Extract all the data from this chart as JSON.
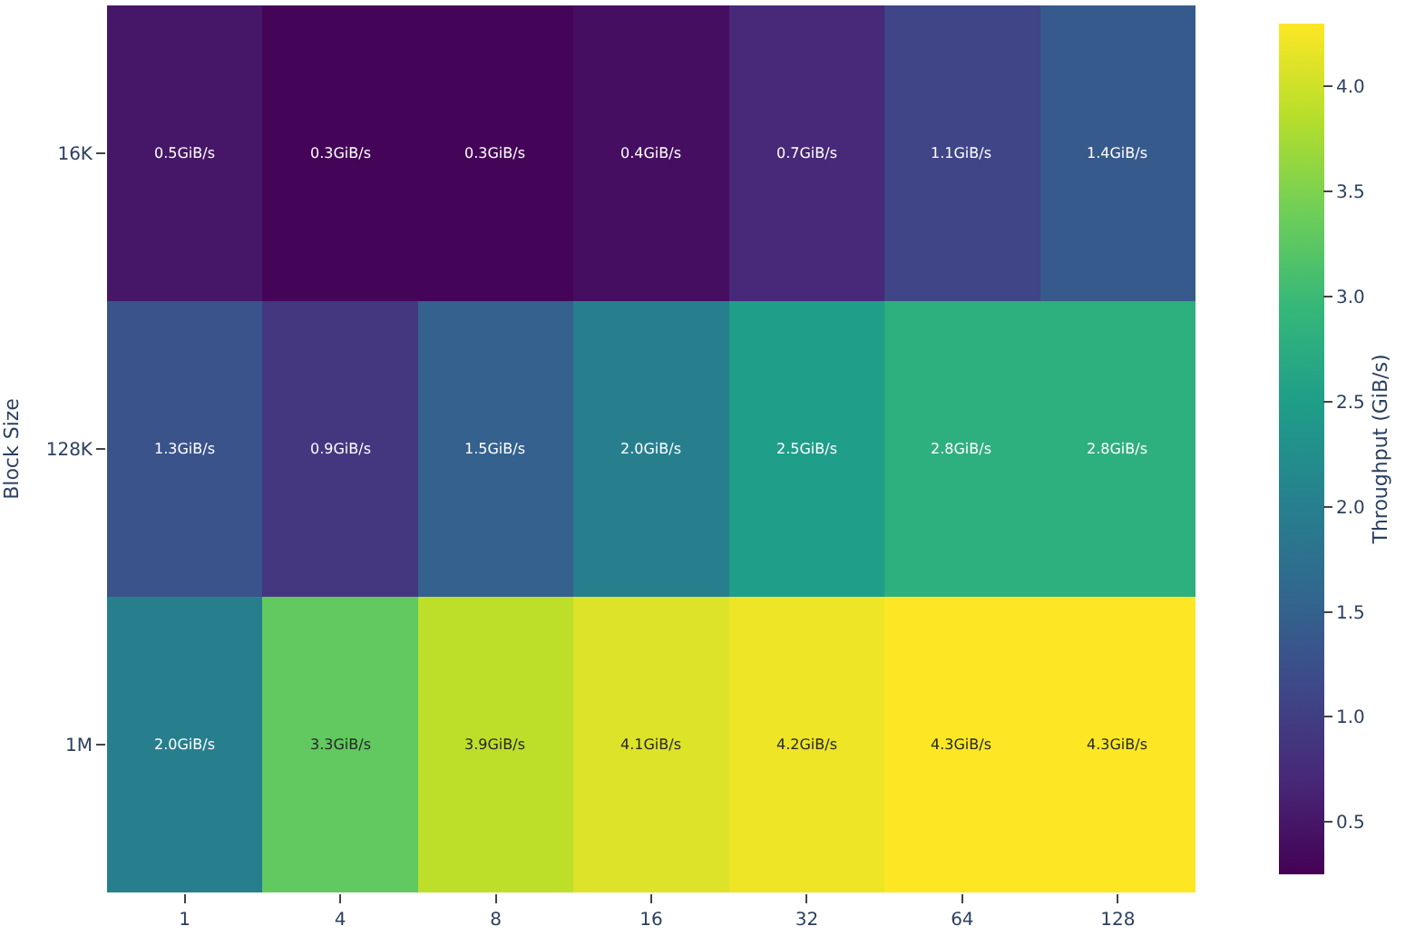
{
  "chart_data": {
    "type": "heatmap",
    "ylabel": "Block Size",
    "clabel": "Throughput (GiB/s)",
    "categories": [
      "1",
      "4",
      "8",
      "16",
      "32",
      "64",
      "128"
    ],
    "y_categories": [
      "16K",
      "128K",
      "1M"
    ],
    "cells": [
      [
        0.5,
        0.3,
        0.3,
        0.4,
        0.7,
        1.1,
        1.4
      ],
      [
        1.3,
        0.9,
        1.5,
        2.0,
        2.5,
        2.8,
        2.8
      ],
      [
        2.0,
        3.3,
        3.9,
        4.1,
        4.2,
        4.3,
        4.3
      ]
    ],
    "cell_labels": [
      [
        "0.5GiB/s",
        "0.3GiB/s",
        "0.3GiB/s",
        "0.4GiB/s",
        "0.7GiB/s",
        "1.1GiB/s",
        "1.4GiB/s"
      ],
      [
        "1.3GiB/s",
        "0.9GiB/s",
        "1.5GiB/s",
        "2.0GiB/s",
        "2.5GiB/s",
        "2.8GiB/s",
        "2.8GiB/s"
      ],
      [
        "2.0GiB/s",
        "3.3GiB/s",
        "3.9GiB/s",
        "4.1GiB/s",
        "4.2GiB/s",
        "4.3GiB/s",
        "4.3GiB/s"
      ]
    ],
    "clim": [
      0.25,
      4.3
    ],
    "cticks": [
      0.5,
      {
        "value": 1,
        "label": "1.0"
      },
      1.5,
      {
        "value": 2,
        "label": "2.0"
      },
      2.5,
      {
        "value": 3,
        "label": "3.0"
      },
      3.5,
      {
        "value": 4,
        "label": "4.0"
      }
    ]
  }
}
